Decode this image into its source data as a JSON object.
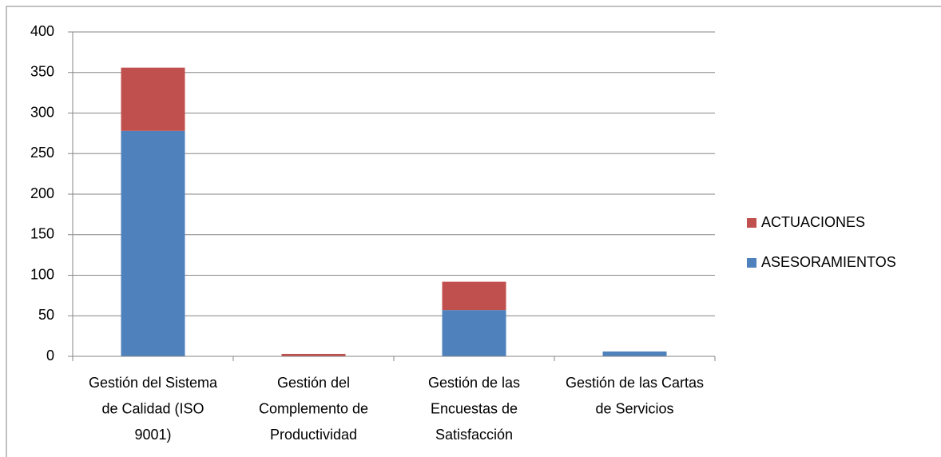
{
  "chart_data": {
    "type": "stacked_bar",
    "categories": [
      "Gestión del Sistema de Calidad (ISO 9001)",
      "Gestión del Complemento de Productividad",
      "Gestión de las Encuestas de Satisfacción",
      "Gestión de las Cartas de Servicios"
    ],
    "series": [
      {
        "name": "ASESORAMIENTOS",
        "color": "#4f81bd",
        "values": [
          278,
          0,
          57,
          6
        ]
      },
      {
        "name": "ACTUACIONES",
        "color": "#c0504d",
        "values": [
          78,
          3,
          35,
          0
        ]
      }
    ],
    "ylim": [
      0,
      400
    ],
    "yticks": [
      0,
      50,
      100,
      150,
      200,
      250,
      300,
      350,
      400
    ],
    "grid": true,
    "legend": "right"
  }
}
